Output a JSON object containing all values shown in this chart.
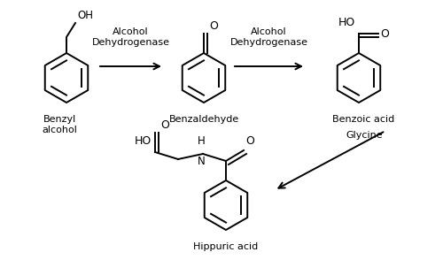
{
  "bg_color": "#ffffff",
  "text_color": "#000000",
  "arrow_color": "#000000",
  "labels": {
    "benzyl_alcohol": "Benzyl\nalcohol",
    "benzaldehyde": "Benzaldehyde",
    "benzoic_acid": "Benzoic acid",
    "hippuric_acid": "Hippuric acid",
    "enzyme1": "Alcohol\nDehydrogenase",
    "enzyme2": "Alcohol\nDehydrogenase",
    "glycine": "Glycine"
  },
  "figsize": [
    5.0,
    2.94
  ],
  "dpi": 100
}
